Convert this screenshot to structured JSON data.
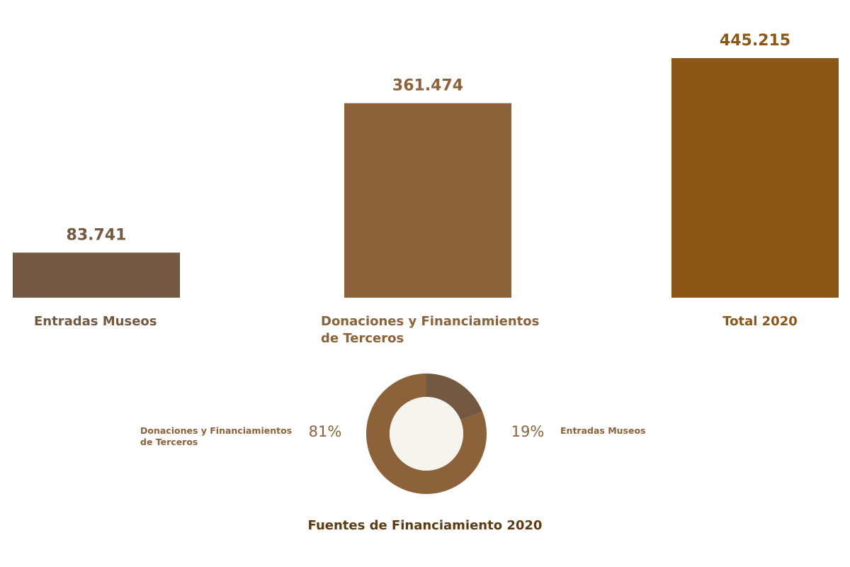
{
  "chart_data": [
    {
      "type": "bar",
      "categories": [
        "Entradas Museos",
        "Donaciones y Financiamientos de Terceros",
        "Total 2020"
      ],
      "category_lines": [
        [
          "Entradas Museos"
        ],
        [
          "Donaciones y Financiamientos",
          "de Terceros"
        ],
        [
          "Total 2020"
        ]
      ],
      "values": [
        83741,
        361474,
        445215
      ],
      "value_labels": [
        "83.741",
        "361.474",
        "445.215"
      ],
      "colors": [
        "#745942",
        "#8b6239",
        "#8b5717"
      ],
      "ylim": [
        0,
        445215
      ],
      "title": "",
      "xlabel": "",
      "ylabel": "",
      "grid": false
    },
    {
      "type": "pie",
      "subtype": "donut",
      "title": "Fuentes de Financiamiento 2020",
      "slices": [
        {
          "name": "Entradas Museos",
          "value": 19,
          "percent_label": "19%",
          "label_lines": [
            "Entradas Museos"
          ],
          "color": "#745942",
          "label_side": "right"
        },
        {
          "name": "Donaciones y Financiamientos de Terceros",
          "value": 81,
          "percent_label": "81%",
          "label_lines": [
            "Donaciones y Financiamientos",
            "de Terceros"
          ],
          "color": "#8b6239",
          "label_side": "left"
        }
      ],
      "center_color": "#f5f5ee",
      "title_color": "#5c3a12",
      "pct_color": "#8b6239"
    }
  ]
}
